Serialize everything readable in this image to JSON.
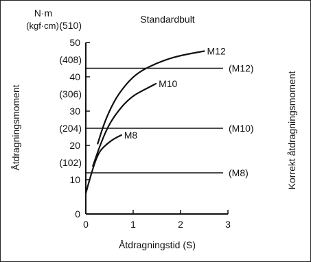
{
  "chart_data": {
    "type": "line",
    "title": "Standardbult",
    "xlabel": "Åtdragningstid (S)",
    "ylabel": "Åtdragningsmoment",
    "ylabel_right": "Korrekt åtdragningsmoment",
    "unit_line1": "N·m",
    "unit_line2": "(kgf·cm)",
    "xlim": [
      0,
      3
    ],
    "ylim": [
      0,
      50
    ],
    "x_ticks": [
      "0",
      "1",
      "2",
      "3"
    ],
    "y_ticks": [
      {
        "value": 0,
        "label": "0"
      },
      {
        "value": 10,
        "label": "10"
      },
      {
        "value": 20,
        "label": "20"
      },
      {
        "value": 30,
        "label": "30"
      },
      {
        "value": 40,
        "label": "40"
      },
      {
        "value": 50,
        "label": "50"
      }
    ],
    "y_ticks_kgf": [
      {
        "value": 10,
        "label": "(102)"
      },
      {
        "value": 20,
        "label": "(204)"
      },
      {
        "value": 30,
        "label": "(306)"
      },
      {
        "value": 40,
        "label": "(408)"
      },
      {
        "value": 50,
        "label": "(510)"
      }
    ],
    "series": [
      {
        "name": "M12",
        "x": [
          0.25,
          0.4,
          0.6,
          0.8,
          1.0,
          1.2,
          1.5,
          1.8,
          2.1,
          2.5
        ],
        "y": [
          20.5,
          27.0,
          33.0,
          37.0,
          40.0,
          42.0,
          44.0,
          45.5,
          46.5,
          47.5
        ]
      },
      {
        "name": "M10",
        "x": [
          0.15,
          0.3,
          0.45,
          0.6,
          0.8,
          1.0,
          1.2,
          1.48
        ],
        "y": [
          14.0,
          20.0,
          25.0,
          28.5,
          32.0,
          34.5,
          36.0,
          38.0
        ]
      },
      {
        "name": "M8",
        "x": [
          0.0,
          0.1,
          0.2,
          0.3,
          0.45,
          0.6,
          0.75
        ],
        "y": [
          6.0,
          11.0,
          15.5,
          18.5,
          20.5,
          22.0,
          23.0
        ]
      }
    ],
    "reference_lines": [
      {
        "name": "(M12)",
        "y": 42.5
      },
      {
        "name": "(M10)",
        "y": 25.0
      },
      {
        "name": "(M8)",
        "y": 12.0
      }
    ],
    "grid": false
  }
}
